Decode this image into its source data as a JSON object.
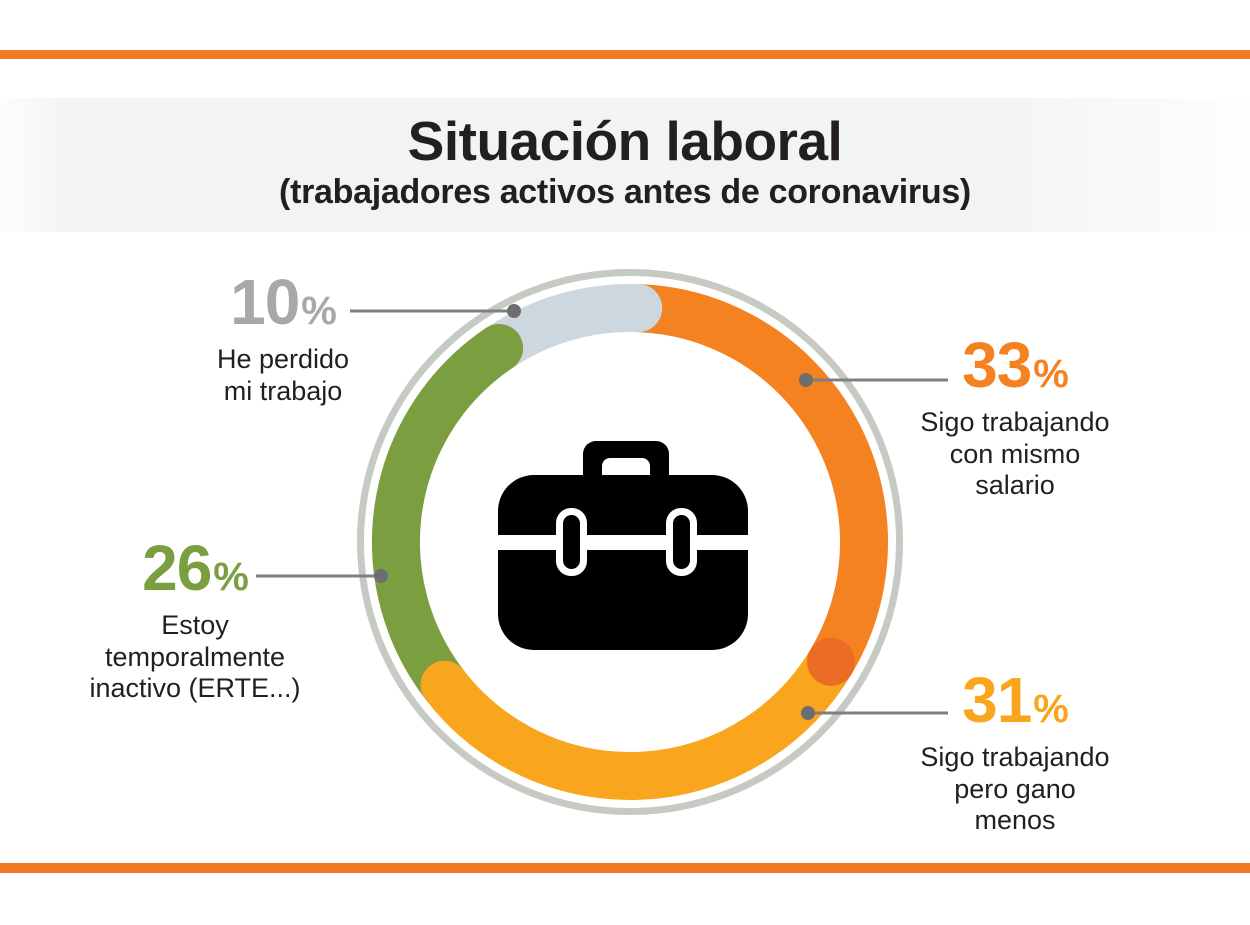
{
  "page": {
    "title": "Situación laboral",
    "subtitle": "(trabajadores activos antes de coronavirus)"
  },
  "style": {
    "accent_bar_color": "#ef7b22",
    "text_color": "#231f20",
    "outer_ring_color": "#c5cac3",
    "leader_line_color": "#7d7f82",
    "leader_dot_color": "#6d6e71",
    "icon_color": "#000000",
    "header_band_color": "#f2f3f5"
  },
  "chart_data": {
    "type": "pie",
    "variant": "donut",
    "title": "Situación laboral",
    "subtitle": "(trabajadores activos antes de coronavirus)",
    "unit": "%",
    "start_angle_deg": 2,
    "direction": "clockwise",
    "center_icon": "briefcase",
    "legend_position": "callouts-around-ring",
    "segments": [
      {
        "id": "mismo-salario",
        "label": "Sigo trabajando con mismo salario",
        "value": 33,
        "color": "#f58220",
        "cap_color": "#ed6c23"
      },
      {
        "id": "gano-menos",
        "label": "Sigo trabajando pero gano menos",
        "value": 31,
        "color": "#f9a51d",
        "cap_color": "#f9a51d"
      },
      {
        "id": "erte",
        "label": "Estoy temporalmente inactivo (ERTE...)",
        "value": 26,
        "color": "#7b9e40",
        "cap_color": "#7b9e40"
      },
      {
        "id": "perdido",
        "label": "He perdido mi trabajo",
        "value": 10,
        "color": "#ccd7df",
        "cap_color": "#ccd7df"
      }
    ]
  },
  "callouts": {
    "c10": {
      "value": "10",
      "unit": "%",
      "color": "#a6a8ab",
      "lines": [
        "He perdido",
        "mi trabajo"
      ]
    },
    "c33": {
      "value": "33",
      "unit": "%",
      "color": "#f58220",
      "lines": [
        "Sigo trabajando",
        "con mismo",
        "salario"
      ]
    },
    "c26": {
      "value": "26",
      "unit": "%",
      "color": "#7b9e40",
      "lines": [
        "Estoy",
        "temporalmente",
        "inactivo (ERTE...)"
      ]
    },
    "c31": {
      "value": "31",
      "unit": "%",
      "color": "#f9a51d",
      "lines": [
        "Sigo trabajando",
        "pero gano",
        "menos"
      ]
    }
  }
}
